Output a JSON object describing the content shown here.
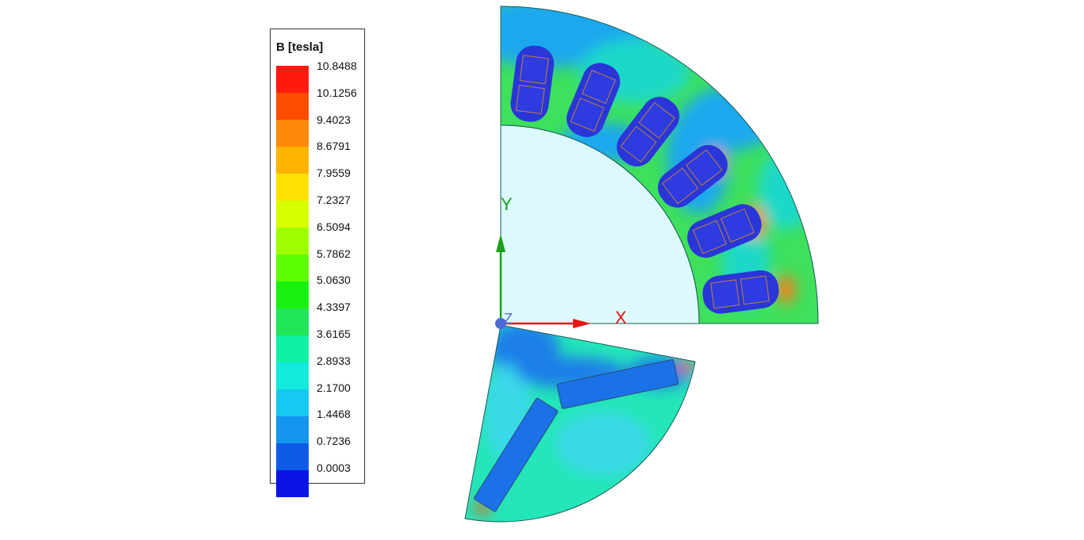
{
  "legend": {
    "title": "B [tesla]",
    "ticks": [
      "10.8488",
      "10.1256",
      "9.4023",
      "8.6791",
      "7.9559",
      "7.2327",
      "6.5094",
      "5.7862",
      "5.0630",
      "4.3397",
      "3.6165",
      "2.8933",
      "2.1700",
      "1.4468",
      "0.7236",
      "0.0003"
    ],
    "colors": [
      "#ff1a0f",
      "#ff4d00",
      "#ff8a0a",
      "#ffb400",
      "#ffe000",
      "#d7ff00",
      "#9eff00",
      "#5cff00",
      "#18f20e",
      "#22e65a",
      "#10f0a4",
      "#12eadc",
      "#16c8f2",
      "#1496ee",
      "#0f5ae6",
      "#0a14e6"
    ]
  },
  "axes": {
    "y_label": "Y",
    "x_label": "X",
    "z_label": "Z"
  },
  "colors": {
    "stator_base": "#3ee05c",
    "stator_low": "#1aa8ee",
    "slot": "#2a36d8",
    "bore": "#dcfafb",
    "rotor_base": "#24e6b8",
    "rotor_low": "#1e7fe8",
    "magnet": "#1a72e6",
    "axis_y": "#1aa01a",
    "axis_x": "#e61414",
    "axis_z": "#4a6ad8"
  }
}
